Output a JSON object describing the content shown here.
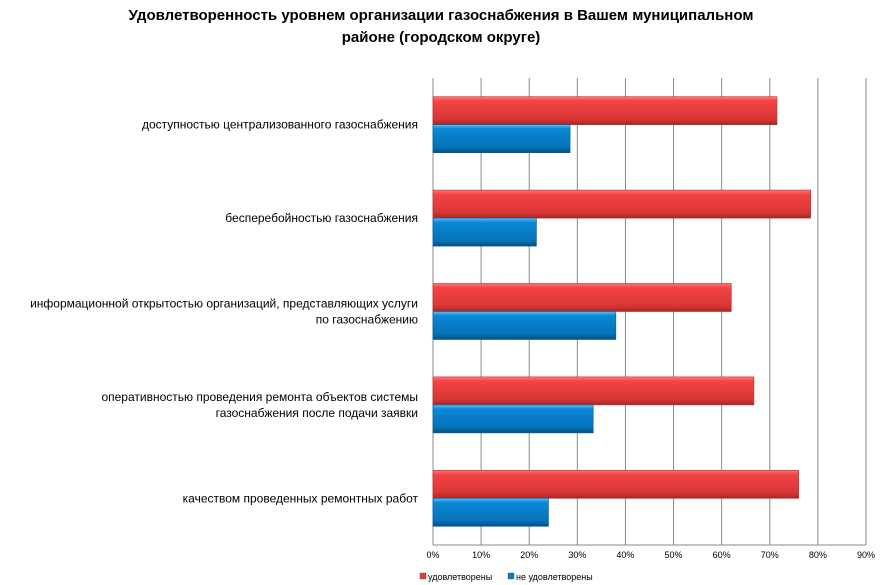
{
  "chart_data": {
    "type": "bar",
    "orientation": "horizontal",
    "title_lines": [
      "Удовлетворенность уровнем организации газоснабжения в Вашем муниципальном",
      "районе (городском округе)"
    ],
    "categories": [
      [
        "доступностью  централизованного  газоснабжения"
      ],
      [
        "бесперебойностью  газоснабжения"
      ],
      [
        "информационной открытостью организаций, представляющих услуги",
        "по газоснабжению"
      ],
      [
        "оперативностью проведения ремонта  объектов системы",
        "газоснабжения после подачи заявки"
      ],
      [
        "качеством проведенных ремонтных  работ"
      ]
    ],
    "series": [
      {
        "name": "удовлетворены",
        "color": "#e23b3b",
        "values": [
          71.5,
          78.5,
          62,
          66.7,
          76
        ]
      },
      {
        "name": "не удовлетворены",
        "color": "#0a78c2",
        "values": [
          28.5,
          21.5,
          38,
          33.3,
          24
        ]
      }
    ],
    "xlim": [
      0,
      90
    ],
    "xticks": [
      "0%",
      "10%",
      "20%",
      "30%",
      "40%",
      "50%",
      "60%",
      "70%",
      "80%",
      "90%"
    ],
    "grid": true,
    "legend": "bottom"
  }
}
